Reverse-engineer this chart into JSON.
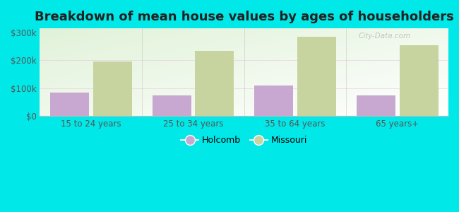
{
  "title": "Breakdown of mean house values by ages of householders",
  "categories": [
    "15 to 24 years",
    "25 to 34 years",
    "35 to 64 years",
    "65 years+"
  ],
  "holcomb_values": [
    85000,
    75000,
    110000,
    75000
  ],
  "missouri_values": [
    195000,
    235000,
    285000,
    255000
  ],
  "holcomb_color": "#c8a8d0",
  "missouri_color": "#c8d4a0",
  "background_color": "#00e8e8",
  "yticks": [
    0,
    100000,
    200000,
    300000
  ],
  "ytick_labels": [
    "$0",
    "$100k",
    "$200k",
    "$300k"
  ],
  "ylim": [
    0,
    315000
  ],
  "title_fontsize": 13,
  "legend_labels": [
    "Holcomb",
    "Missouri"
  ],
  "bar_width": 0.38,
  "watermark": "City-Data.com"
}
